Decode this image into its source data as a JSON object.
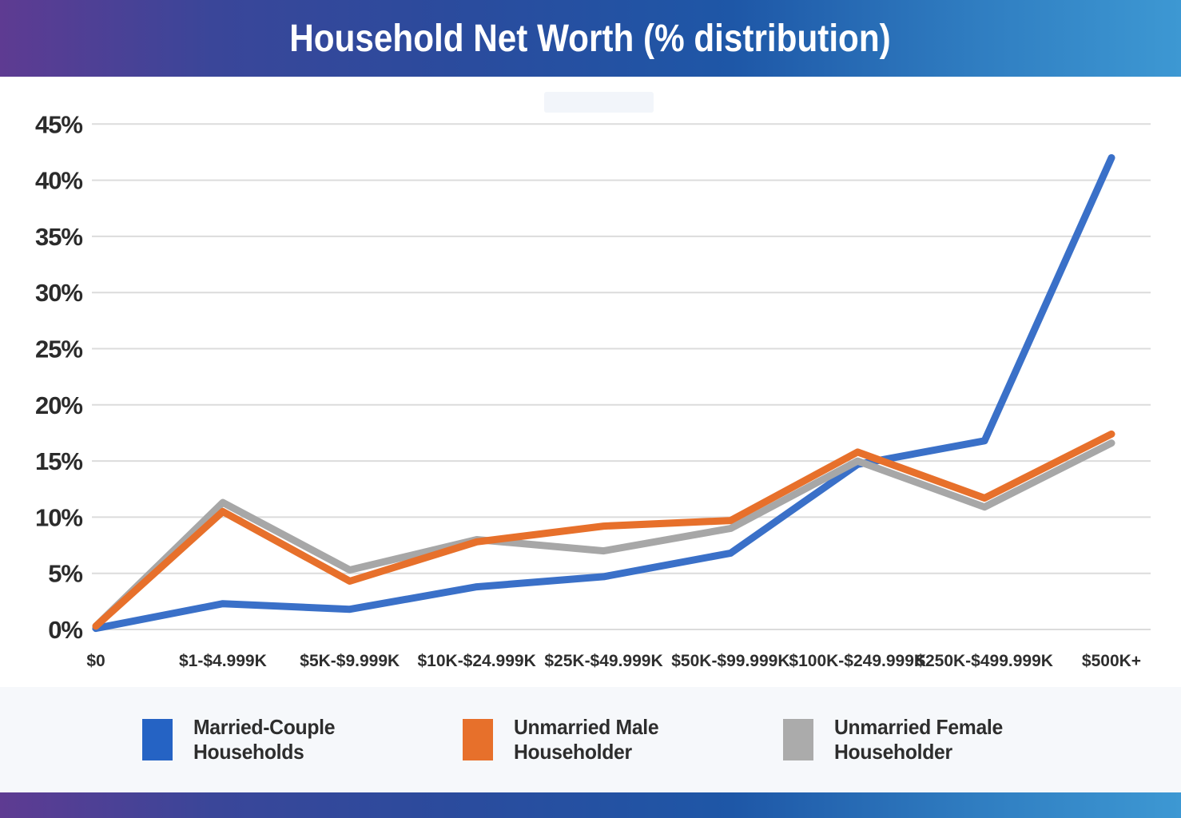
{
  "header": {
    "title": "Household Net Worth (% distribution)"
  },
  "chart_data": {
    "type": "line",
    "title": "Household Net Worth (% distribution)",
    "categories": [
      "$0",
      "$1-$4.999K",
      "$5K-$9.999K",
      "$10K-$24.999K",
      "$25K-$49.999K",
      "$50K-$99.999K",
      "$100K-$249.999K",
      "$250K-$499.999K",
      "$500K+"
    ],
    "y_ticks": [
      0,
      5,
      10,
      15,
      20,
      25,
      30,
      35,
      40,
      45
    ],
    "y_tick_suffix": "%",
    "ylim": [
      0,
      45
    ],
    "grid": true,
    "legend_position": "bottom",
    "draw_order": [
      0,
      2,
      1
    ],
    "series": [
      {
        "name": "Married-Couple Households",
        "color": "#3a70c8",
        "values": [
          0.1,
          2.3,
          1.8,
          3.8,
          4.7,
          6.8,
          14.7,
          16.8,
          42.0
        ]
      },
      {
        "name": "Unmarried Male Householder",
        "color": "#e7702b",
        "values": [
          0.3,
          10.5,
          4.3,
          7.8,
          9.2,
          9.7,
          15.8,
          11.7,
          17.4
        ]
      },
      {
        "name": "Unmarried Female Householder",
        "color": "#a7a7a7",
        "values": [
          0.3,
          11.3,
          5.3,
          8.0,
          7.0,
          9.0,
          15.0,
          10.9,
          16.6
        ]
      }
    ]
  },
  "legend": {
    "items": [
      {
        "color": "#2563c4",
        "lines": [
          "Married-Couple",
          "Households"
        ]
      },
      {
        "color": "#e7702b",
        "lines": [
          "Unmarried Male",
          "Householder"
        ]
      },
      {
        "color": "#ababab",
        "lines": [
          "Unmarried Female",
          "Householder"
        ]
      }
    ]
  },
  "style": {
    "gridline_color": "#dcdcdc",
    "y_label_color": "#2b2b2b",
    "x_label_color": "#2e2e2e",
    "line_width": 9
  }
}
